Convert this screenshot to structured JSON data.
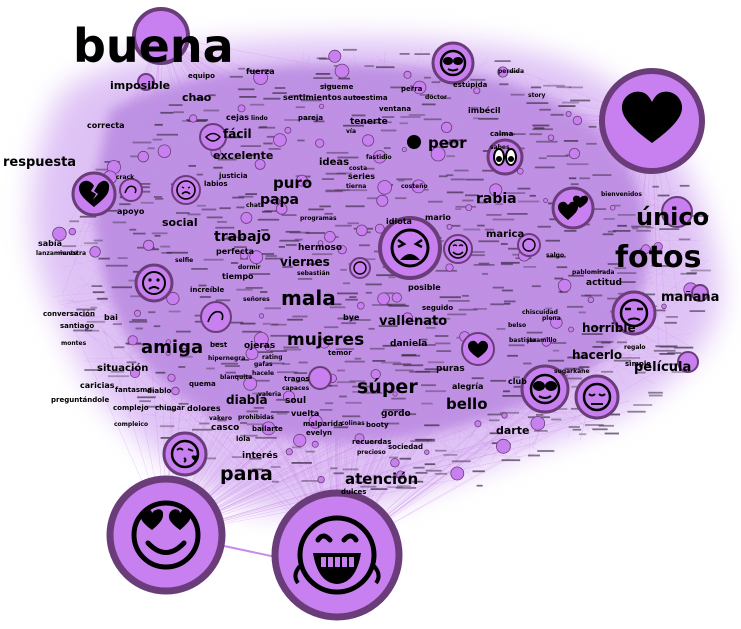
{
  "colors": {
    "node_fill": "#c880f0",
    "node_ring": "#6a3d7a",
    "edge": "#c98be6",
    "cloud": "#b77ee0",
    "emoji_ink": "#000000"
  },
  "words": {
    "w01": "buena",
    "w02": "imposible",
    "w03": "equipo",
    "w04": "fuerza",
    "w05": "chao",
    "w06": "sentimientos",
    "w07": "autoestima",
    "w08": "estúpida",
    "w09": "perdida",
    "w10": "perra",
    "w11": "imbécil",
    "w12": "correcta",
    "w13": "cejas",
    "w14": "fácil",
    "w15": "tenerte",
    "w16": "vía",
    "w17": "calma",
    "w18": "respuesta",
    "w19": "excelente",
    "w20": "ideas",
    "w21": "peor",
    "w22": "crack",
    "w23": "justicia",
    "w24": "labios",
    "w25": "puro",
    "w26": "series",
    "w27": "papa",
    "w28": "rabia",
    "w29": "apoyo",
    "w30": "social",
    "w31": "chat",
    "w32": "idiota",
    "w33": "mario",
    "w34": "único",
    "w35": "trabajo",
    "w36": "marica",
    "w37": "sabía",
    "w38": "perfecta",
    "w39": "hermoso",
    "w40": "fotos",
    "w41": "selfie",
    "w42": "viernes",
    "w43": "tiempo",
    "w44": "sebastián",
    "w45": "mañana",
    "w46": "increíble",
    "w47": "mala",
    "w48": "posible",
    "w49": "actitud",
    "w50": "señores",
    "w51": "conversación",
    "w52": "bai",
    "w53": "bye",
    "w54": "vallenato",
    "w55": "santiago",
    "w56": "seguido",
    "w57": "horrible",
    "w58": "mujeres",
    "w59": "amiga",
    "w60": "daniela",
    "w61": "best",
    "w62": "ojeras",
    "w63": "hacerlo",
    "w64": "situación",
    "w65": "temor",
    "w66": "película",
    "w67": "caricias",
    "w68": "fantasma",
    "w69": "diablo",
    "w70": "súper",
    "w71": "alegría",
    "w72": "puras",
    "w73": "club",
    "w74": "preguntándole",
    "w75": "diabla",
    "w76": "soul",
    "w77": "bello",
    "w78": "complejo",
    "w79": "chingar",
    "w80": "dolores",
    "w81": "vuelta",
    "w82": "gordo",
    "w83": "compleico",
    "w84": "casco",
    "w85": "malparida",
    "w86": "booty",
    "w87": "darte",
    "w88": "lola",
    "w89": "bailarte",
    "w90": "recuerdas",
    "w91": "sociedad",
    "w92": "interés",
    "w93": "pana",
    "w94": "atención",
    "w95": "dulces",
    "w96": "ventana",
    "w97": "regalo",
    "w98": "simple",
    "w99": "sigueme",
    "w100": "fastidio",
    "w101": "costa",
    "w102": "tierna",
    "w103": "programas",
    "w104": "dormir",
    "w105": "hipernegra",
    "w106": "rating",
    "w107": "pablomirada",
    "w108": "plena",
    "w109": "bienvenidos",
    "w110": "salgo",
    "w111": "tragos",
    "w112": "capaces",
    "w113": "valeria",
    "w114": "evelyn",
    "w115": "colinas",
    "w116": "precioso",
    "w117": "muestra",
    "w118": "lanzamiento",
    "w119": "montes",
    "w120": "quema",
    "w121": "vakero",
    "w122": "prohibidas",
    "w123": "blanquita",
    "w124": "jaramillo",
    "w125": "belso",
    "w126": "chiscuidad",
    "w127": "bastista",
    "w128": "sugarkane",
    "w129": "hacele",
    "w130": "gafas",
    "w131": "costeño",
    "w132": "pareja",
    "w133": "lindo",
    "w134": "sabes",
    "w135": "doctor",
    "w136": "story"
  },
  "emojis": {
    "e_heart_big": "black-heart",
    "e_heart_eyes": "smiling-face-with-heart-eyes",
    "e_rofl": "rolling-on-the-floor-laughing",
    "e_tired": "tired-face",
    "e_broken_heart": "broken-heart",
    "e_two_hearts": "two-hearts",
    "e_eyes": "eyes",
    "e_see_no_evil": "see-no-evil-monkey",
    "e_sad": "frowning-face",
    "e_kiss": "face-blowing-a-kiss",
    "e_unamused": "unamused-face",
    "e_relieved": "relieved-face",
    "e_smile": "smiling-face",
    "e_pensive": "pensive-face",
    "e_hug": "hugging-face",
    "e_heart_small": "black-heart",
    "e_flex": "flexed-biceps",
    "e_plain": "neutral-face"
  }
}
